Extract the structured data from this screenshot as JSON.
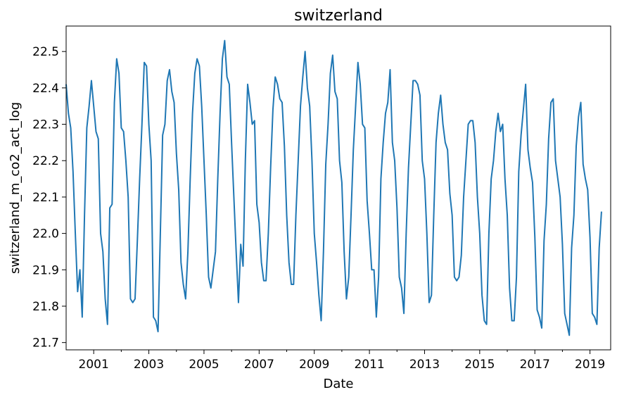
{
  "chart_data": {
    "type": "line",
    "title": "switzerland",
    "xlabel": "Date",
    "ylabel": "switzerland_m_co2_act_log",
    "xlim": [
      "2000-01",
      "2019-10"
    ],
    "ylim": [
      21.68,
      22.57
    ],
    "x_major_ticks": [
      "2001-01",
      "2003-01",
      "2005-01",
      "2007-01",
      "2009-01",
      "2011-01",
      "2013-01",
      "2015-01",
      "2017-01",
      "2019-01"
    ],
    "x_major_tick_labels": [
      "2001",
      "2003",
      "2005",
      "2007",
      "2009",
      "2011",
      "2013",
      "2015",
      "2017",
      "2019"
    ],
    "x_minor_ticks": [
      "2002-01",
      "2004-01",
      "2006-01",
      "2008-01",
      "2010-01",
      "2012-01",
      "2014-01",
      "2016-01",
      "2018-01"
    ],
    "y_ticks": [
      21.7,
      21.8,
      21.9,
      22.0,
      22.1,
      22.2,
      22.3,
      22.4,
      22.5
    ],
    "y_tick_labels": [
      "21.7",
      "21.8",
      "21.9",
      "22.0",
      "22.1",
      "22.2",
      "22.3",
      "22.4",
      "22.5"
    ],
    "grid": false,
    "series": [
      {
        "color": "#1f77b4",
        "start": "2000-01",
        "frequency": "monthly",
        "values": [
          22.41,
          22.33,
          22.29,
          22.17,
          22.0,
          21.84,
          21.9,
          21.77,
          22.05,
          22.29,
          22.35,
          22.42,
          22.35,
          22.28,
          22.26,
          22.0,
          21.95,
          21.82,
          21.75,
          22.07,
          22.08,
          22.36,
          22.48,
          22.44,
          22.29,
          22.28,
          22.2,
          22.1,
          21.82,
          21.81,
          21.82,
          21.98,
          22.15,
          22.3,
          22.47,
          22.46,
          22.3,
          22.2,
          21.77,
          21.76,
          21.73,
          22.0,
          22.27,
          22.3,
          22.42,
          22.45,
          22.39,
          22.36,
          22.22,
          22.12,
          21.92,
          21.86,
          21.82,
          21.95,
          22.15,
          22.33,
          22.44,
          22.48,
          22.46,
          22.35,
          22.2,
          22.05,
          21.88,
          21.85,
          21.9,
          21.95,
          22.15,
          22.33,
          22.48,
          22.53,
          22.43,
          22.41,
          22.25,
          22.1,
          21.95,
          21.81,
          21.97,
          21.91,
          22.2,
          22.41,
          22.36,
          22.3,
          22.31,
          22.08,
          22.03,
          21.92,
          21.87,
          21.87,
          22.0,
          22.18,
          22.34,
          22.43,
          22.41,
          22.37,
          22.36,
          22.24,
          22.05,
          21.92,
          21.86,
          21.86,
          22.05,
          22.2,
          22.35,
          22.43,
          22.5,
          22.4,
          22.35,
          22.2,
          22.0,
          21.92,
          21.83,
          21.76,
          21.95,
          22.19,
          22.3,
          22.44,
          22.49,
          22.39,
          22.37,
          22.2,
          22.14,
          21.95,
          21.82,
          21.88,
          22.05,
          22.23,
          22.35,
          22.47,
          22.41,
          22.3,
          22.29,
          22.09,
          22.0,
          21.9,
          21.9,
          21.77,
          21.88,
          22.15,
          22.25,
          22.33,
          22.36,
          22.45,
          22.25,
          22.2,
          22.07,
          21.88,
          21.85,
          21.78,
          22.0,
          22.18,
          22.3,
          22.42,
          22.42,
          22.41,
          22.38,
          22.2,
          22.15,
          22.0,
          21.81,
          21.83,
          22.05,
          22.25,
          22.33,
          22.38,
          22.3,
          22.25,
          22.23,
          22.11,
          22.05,
          21.88,
          21.87,
          21.88,
          21.94,
          22.1,
          22.2,
          22.3,
          22.31,
          22.31,
          22.25,
          22.1,
          22.0,
          21.83,
          21.76,
          21.75,
          22.0,
          22.15,
          22.2,
          22.28,
          22.33,
          22.28,
          22.3,
          22.15,
          22.05,
          21.85,
          21.76,
          21.76,
          21.88,
          22.17,
          22.27,
          22.34,
          22.41,
          22.23,
          22.18,
          22.14,
          21.99,
          21.79,
          21.77,
          21.74,
          21.98,
          22.08,
          22.26,
          22.36,
          22.37,
          22.2,
          22.15,
          22.1,
          21.97,
          21.78,
          21.75,
          21.72,
          21.96,
          22.05,
          22.24,
          22.32,
          22.36,
          22.19,
          22.15,
          22.12,
          21.99,
          21.78,
          21.77,
          21.75,
          21.96,
          22.06
        ]
      }
    ]
  }
}
